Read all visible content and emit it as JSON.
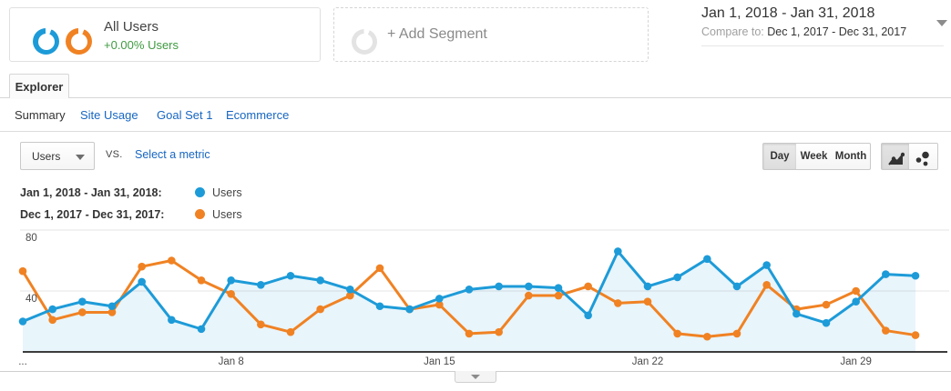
{
  "colors": {
    "series_primary": "#1d9bd8",
    "series_compare": "#f08223",
    "area_fill": "rgba(29,155,216,0.10)",
    "delta_green": "#3f9b41",
    "link_blue": "#1766c2",
    "grid": "#e4e4e4",
    "axis": "#3c3c3c"
  },
  "segments": {
    "all_users": {
      "title": "All Users",
      "delta": "+0.00% Users"
    },
    "add_segment": {
      "label": "+ Add Segment"
    }
  },
  "date_range": {
    "primary": "Jan 1, 2018 - Jan 31, 2018",
    "compare_label": "Compare to:",
    "compare": "Dec 1, 2017 - Dec 31, 2017"
  },
  "tabs": {
    "explorer": "Explorer"
  },
  "subnav": {
    "items": [
      "Summary",
      "Site Usage",
      "Goal Set 1",
      "Ecommerce"
    ]
  },
  "toolbar": {
    "metric_selector": "Users",
    "vs_label": "vs.",
    "select_metric": "Select a metric",
    "granularity": [
      "Day",
      "Week",
      "Month"
    ],
    "active_granularity": "Day"
  },
  "legend": {
    "rows": [
      {
        "label": "Jan 1, 2018 - Jan 31, 2018:",
        "series": "Users",
        "color": "#1d9bd8"
      },
      {
        "label": "Dec 1, 2017 - Dec 31, 2017:",
        "series": "Users",
        "color": "#f08223"
      }
    ]
  },
  "chart_data": {
    "type": "line",
    "title": "Users by day, Jan 1-31 2018 vs Dec 1-31 2017",
    "x": [
      1,
      2,
      3,
      4,
      5,
      6,
      7,
      8,
      9,
      10,
      11,
      12,
      13,
      14,
      15,
      16,
      17,
      18,
      19,
      20,
      21,
      22,
      23,
      24,
      25,
      26,
      27,
      28,
      29,
      30,
      31
    ],
    "x_labels": [
      {
        "text": "...",
        "day": 1
      },
      {
        "text": "Jan 8",
        "day": 8
      },
      {
        "text": "Jan 15",
        "day": 15
      },
      {
        "text": "Jan 22",
        "day": 22
      },
      {
        "text": "Jan 29",
        "day": 29
      }
    ],
    "y_ticks": [
      40,
      80
    ],
    "ylim": [
      0,
      87
    ],
    "grid": true,
    "legend_position": "top-left",
    "series": [
      {
        "name": "Users (Jan 1, 2018 - Jan 31, 2018)",
        "color": "#1d9bd8",
        "area": true,
        "values": [
          20,
          28,
          33,
          30,
          46,
          21,
          15,
          47,
          44,
          50,
          47,
          41,
          30,
          28,
          35,
          41,
          43,
          43,
          42,
          24,
          66,
          43,
          49,
          61,
          43,
          57,
          25,
          19,
          33,
          51,
          50
        ]
      },
      {
        "name": "Users (Dec 1, 2017 - Dec 31, 2017)",
        "color": "#f08223",
        "area": false,
        "values": [
          53,
          21,
          26,
          26,
          56,
          60,
          47,
          38,
          18,
          13,
          28,
          37,
          55,
          28,
          31,
          12,
          13,
          37,
          37,
          43,
          32,
          33,
          12,
          10,
          12,
          44,
          28,
          31,
          40,
          14,
          11
        ]
      }
    ]
  }
}
